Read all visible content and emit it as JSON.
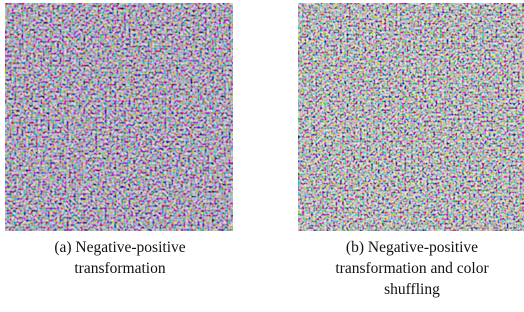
{
  "figures": [
    {
      "caption": "(a) Negative-positive transformation"
    },
    {
      "caption": "(b) Negative-positive transformation and color shuffling"
    }
  ]
}
